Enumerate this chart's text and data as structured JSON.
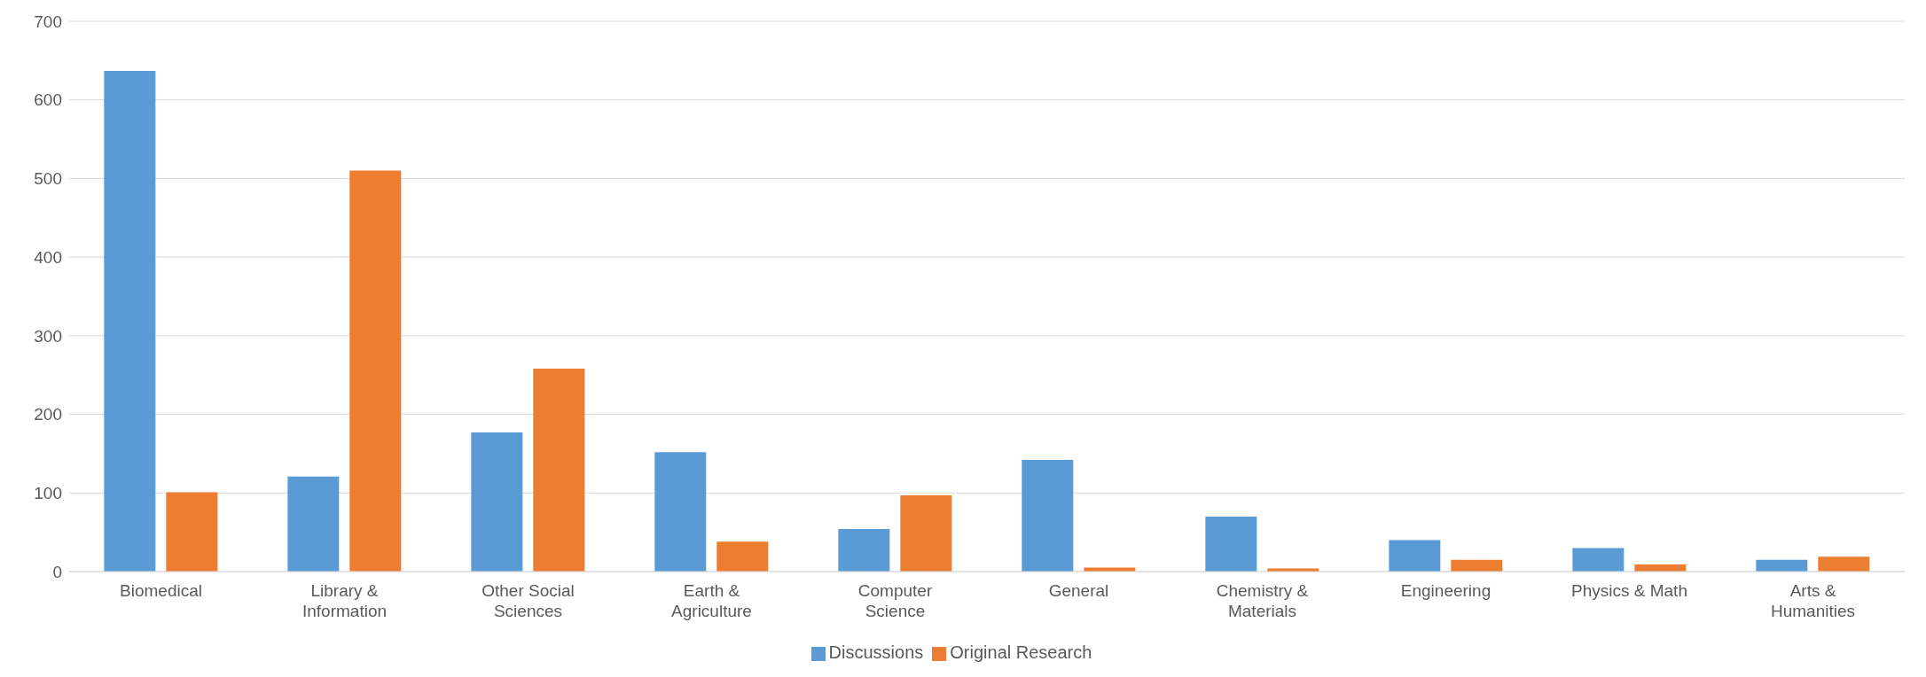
{
  "chart_data": {
    "type": "bar",
    "categories": [
      "Biomedical",
      "Library & Information",
      "Other Social Sciences",
      "Earth & Agriculture",
      "Computer Science",
      "General",
      "Chemistry & Materials",
      "Engineering",
      "Physics & Math",
      "Arts & Humanities"
    ],
    "series": [
      {
        "name": "Discussions",
        "color": "#5b9bd5",
        "values": [
          637,
          121,
          177,
          152,
          54,
          142,
          70,
          40,
          30,
          15
        ]
      },
      {
        "name": "Original Research",
        "color": "#ed7d31",
        "values": [
          101,
          510,
          258,
          38,
          97,
          5,
          4,
          15,
          9,
          19
        ]
      }
    ],
    "ylim": [
      0,
      700
    ],
    "yticks": [
      0,
      100,
      200,
      300,
      400,
      500,
      600,
      700
    ],
    "grid": "y",
    "legend": "bottom"
  }
}
